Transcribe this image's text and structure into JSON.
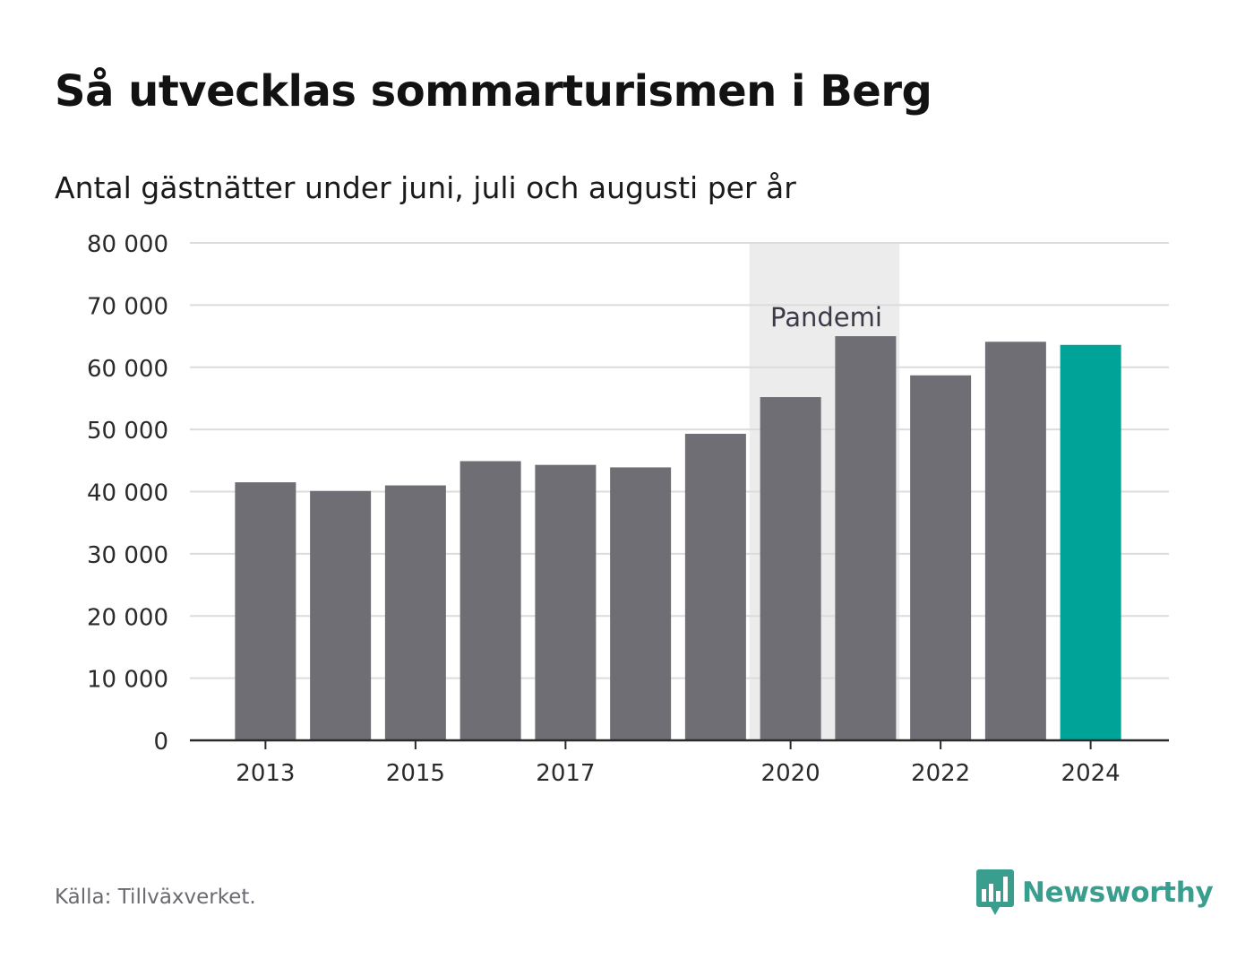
{
  "title": "Så utvecklas sommarturismen i Berg",
  "subtitle": "Antal gästnätter under juni, juli och augusti per år",
  "source": "Källa: Tillväxverket.",
  "brand": {
    "name": "Newsworthy",
    "icon": "newsworthy-logo-icon",
    "color": "#3a9e8f"
  },
  "chart_data": {
    "type": "bar",
    "categories": [
      "2013",
      "2014",
      "2015",
      "2016",
      "2017",
      "2018",
      "2019",
      "2020",
      "2021",
      "2022",
      "2023",
      "2024"
    ],
    "values": [
      41500,
      40100,
      41000,
      44900,
      44300,
      43900,
      49300,
      55200,
      65000,
      58700,
      64100,
      63600
    ],
    "x_tick_labels": [
      "2013",
      "2015",
      "2017",
      "2020",
      "2022",
      "2024"
    ],
    "y_tick_labels": [
      "0",
      "10 000",
      "20 000",
      "30 000",
      "40 000",
      "50 000",
      "60 000",
      "70 000",
      "80 000"
    ],
    "y_ticks": [
      0,
      10000,
      20000,
      30000,
      40000,
      50000,
      60000,
      70000,
      80000
    ],
    "ylim": [
      0,
      80000
    ],
    "grid": true,
    "bar_color": "#6f6e75",
    "highlight_color": "#00a398",
    "highlight_category": "2024",
    "annotation": {
      "label": "Pandemi",
      "from": "2020",
      "to": "2021",
      "band_color": "#ececec"
    }
  }
}
